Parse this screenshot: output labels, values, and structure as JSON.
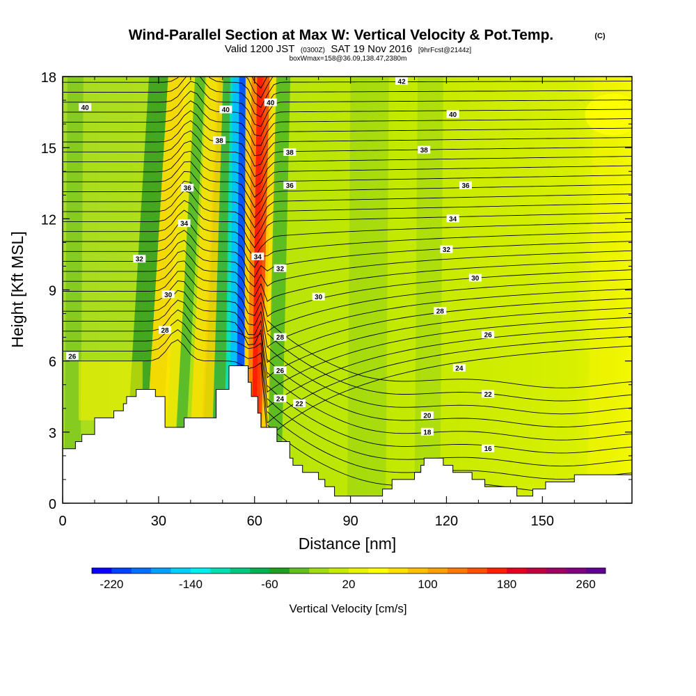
{
  "chart_data": {
    "type": "heatmap",
    "title": "Wind-Parallel Section at Max W: Vertical Velocity & Pot.Temp.",
    "copyright_mark": "(C)",
    "subtitle_line1": {
      "prefix": "Valid 1200 JST",
      "utc": "(0300Z)",
      "date": "SAT 19 Nov 2016",
      "forecast": "[9hrFcst@2144z]"
    },
    "subtitle_line2": "boxWmax=158@36.09,138.47,2380m",
    "xlabel": "Distance [nm]",
    "ylabel": "Height [Kft MSL]",
    "xlim": [
      0,
      178
    ],
    "ylim": [
      0,
      18
    ],
    "x_ticks": [
      "0",
      "30",
      "60",
      "90",
      "120",
      "150"
    ],
    "x_tick_values": [
      0,
      30,
      60,
      90,
      120,
      150
    ],
    "y_ticks": [
      "0",
      "3",
      "6",
      "9",
      "12",
      "15",
      "18"
    ],
    "y_tick_values": [
      0,
      3,
      6,
      9,
      12,
      15,
      18
    ],
    "colorbar": {
      "label": "Vertical Velocity [cm/s]",
      "tick_labels": [
        "-220",
        "-140",
        "-60",
        "20",
        "100",
        "180",
        "260"
      ],
      "tick_values": [
        -220,
        -140,
        -60,
        20,
        100,
        180,
        260
      ],
      "colors": [
        "#0a00ff",
        "#0040ff",
        "#0070ff",
        "#00a0ff",
        "#00cfff",
        "#00f0f0",
        "#00e0b0",
        "#00c880",
        "#00b050",
        "#20a020",
        "#60c020",
        "#a0dc10",
        "#c8ec00",
        "#e8f400",
        "#ffff00",
        "#ffe000",
        "#ffc000",
        "#ffa000",
        "#ff7800",
        "#ff5000",
        "#ff2000",
        "#e80020",
        "#c00040",
        "#a00060",
        "#800080",
        "#600090"
      ]
    },
    "terrain": [
      [
        0,
        2.3
      ],
      [
        4,
        2.3
      ],
      [
        4,
        2.6
      ],
      [
        6,
        2.6
      ],
      [
        6,
        2.9
      ],
      [
        10,
        2.9
      ],
      [
        10,
        3.6
      ],
      [
        16,
        3.6
      ],
      [
        16,
        3.9
      ],
      [
        19,
        3.9
      ],
      [
        19,
        4.2
      ],
      [
        20,
        4.2
      ],
      [
        20,
        4.5
      ],
      [
        23,
        4.5
      ],
      [
        23,
        4.8
      ],
      [
        29,
        4.8
      ],
      [
        29,
        4.5
      ],
      [
        32,
        4.5
      ],
      [
        32,
        3.2
      ],
      [
        38,
        3.2
      ],
      [
        38,
        3.6
      ],
      [
        48,
        3.6
      ],
      [
        48,
        4.8
      ],
      [
        52,
        4.8
      ],
      [
        52,
        5.8
      ],
      [
        58,
        5.8
      ],
      [
        58,
        5.1
      ],
      [
        59,
        5.1
      ],
      [
        59,
        4.5
      ],
      [
        61,
        4.5
      ],
      [
        61,
        3.8
      ],
      [
        62,
        3.8
      ],
      [
        62,
        3.2
      ],
      [
        67,
        3.2
      ],
      [
        67,
        2.6
      ],
      [
        71,
        2.6
      ],
      [
        71,
        1.9
      ],
      [
        72,
        1.9
      ],
      [
        72,
        1.6
      ],
      [
        75,
        1.6
      ],
      [
        75,
        1.3
      ],
      [
        80,
        1.3
      ],
      [
        80,
        1.0
      ],
      [
        82,
        1.0
      ],
      [
        82,
        0.7
      ],
      [
        85,
        0.7
      ],
      [
        85,
        0.3
      ],
      [
        100,
        0.3
      ],
      [
        100,
        0.6
      ],
      [
        103,
        0.6
      ],
      [
        103,
        1.0
      ],
      [
        110,
        1.0
      ],
      [
        110,
        1.3
      ],
      [
        112,
        1.3
      ],
      [
        112,
        1.6
      ],
      [
        113,
        1.6
      ],
      [
        113,
        1.9
      ],
      [
        119,
        1.9
      ],
      [
        119,
        1.6
      ],
      [
        122,
        1.6
      ],
      [
        122,
        1.3
      ],
      [
        128,
        1.3
      ],
      [
        128,
        1.0
      ],
      [
        132,
        1.0
      ],
      [
        132,
        0.7
      ],
      [
        142,
        0.7
      ],
      [
        142,
        0.3
      ],
      [
        147,
        0.3
      ],
      [
        147,
        0.6
      ],
      [
        151,
        0.6
      ],
      [
        151,
        0.9
      ],
      [
        160,
        0.9
      ],
      [
        160,
        1.2
      ],
      [
        178,
        1.2
      ]
    ],
    "theta_contours": [
      {
        "value": 16,
        "label_x": 133,
        "label_y": 2.3
      },
      {
        "value": 18,
        "label_x": 114,
        "label_y": 3.0
      },
      {
        "value": 20,
        "label_x": 114,
        "label_y": 3.7
      },
      {
        "value": 22,
        "label_x": 74,
        "label_y": 4.2
      },
      {
        "value": 22,
        "label_x": 133,
        "label_y": 4.6
      },
      {
        "value": 24,
        "label_x": 68,
        "label_y": 4.4
      },
      {
        "value": 24,
        "label_x": 124,
        "label_y": 5.7
      },
      {
        "value": 26,
        "label_x": 3,
        "label_y": 6.2
      },
      {
        "value": 26,
        "label_x": 68,
        "label_y": 5.6
      },
      {
        "value": 26,
        "label_x": 133,
        "label_y": 7.1
      },
      {
        "value": 28,
        "label_x": 32,
        "label_y": 7.3
      },
      {
        "value": 28,
        "label_x": 68,
        "label_y": 7.0
      },
      {
        "value": 28,
        "label_x": 118,
        "label_y": 8.1
      },
      {
        "value": 30,
        "label_x": 33,
        "label_y": 8.8
      },
      {
        "value": 30,
        "label_x": 80,
        "label_y": 8.7
      },
      {
        "value": 30,
        "label_x": 129,
        "label_y": 9.5
      },
      {
        "value": 32,
        "label_x": 24,
        "label_y": 10.3
      },
      {
        "value": 32,
        "label_x": 68,
        "label_y": 9.9
      },
      {
        "value": 32,
        "label_x": 120,
        "label_y": 10.7
      },
      {
        "value": 34,
        "label_x": 38,
        "label_y": 11.8
      },
      {
        "value": 34,
        "label_x": 61,
        "label_y": 10.4
      },
      {
        "value": 34,
        "label_x": 122,
        "label_y": 12.0
      },
      {
        "value": 36,
        "label_x": 39,
        "label_y": 13.3
      },
      {
        "value": 36,
        "label_x": 71,
        "label_y": 13.4
      },
      {
        "value": 36,
        "label_x": 126,
        "label_y": 13.4
      },
      {
        "value": 38,
        "label_x": 49,
        "label_y": 15.3
      },
      {
        "value": 38,
        "label_x": 71,
        "label_y": 14.8
      },
      {
        "value": 38,
        "label_x": 113,
        "label_y": 14.9
      },
      {
        "value": 40,
        "label_x": 7,
        "label_y": 16.7
      },
      {
        "value": 40,
        "label_x": 51,
        "label_y": 16.6
      },
      {
        "value": 40,
        "label_x": 65,
        "label_y": 16.9
      },
      {
        "value": 40,
        "label_x": 122,
        "label_y": 16.4
      },
      {
        "value": 42,
        "label_x": 106,
        "label_y": 17.8
      }
    ]
  }
}
